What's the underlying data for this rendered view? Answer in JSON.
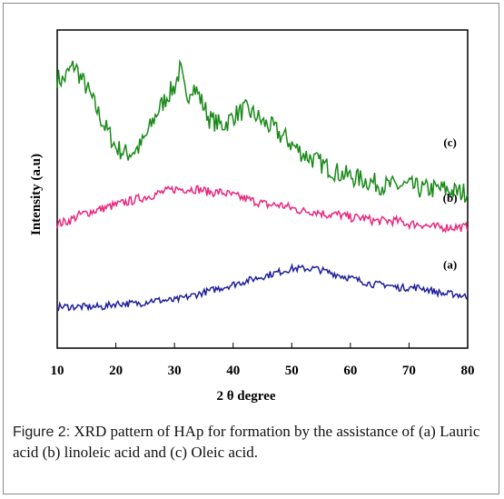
{
  "chart_data": {
    "type": "line",
    "xlabel": "2 θ  degree",
    "ylabel": "Intensity (a.u)",
    "xlim": [
      10,
      80
    ],
    "ylim": [
      0,
      100
    ],
    "x_ticks": [
      10,
      20,
      30,
      40,
      50,
      60,
      70,
      80
    ],
    "grid": false,
    "legend": "none",
    "series": [
      {
        "name": "(c)",
        "color": "#1a8a1a",
        "x": [
          10,
          11,
          12,
          13,
          14,
          15,
          16,
          17,
          18,
          19,
          20,
          21,
          22,
          23,
          24,
          25,
          26,
          27,
          28,
          29,
          30,
          31,
          32,
          33,
          34,
          35,
          36,
          37,
          38,
          39,
          40,
          41,
          42,
          43,
          44,
          45,
          46,
          47,
          48,
          49,
          50,
          52,
          54,
          56,
          58,
          60,
          62,
          64,
          66,
          68,
          70,
          72,
          74,
          76,
          78,
          80
        ],
        "y": [
          85,
          84,
          87,
          89,
          85,
          82,
          78,
          74,
          70,
          67,
          63,
          62,
          61,
          62,
          63,
          66,
          70,
          74,
          77,
          80,
          82,
          88,
          78,
          83,
          80,
          76,
          72,
          71,
          70,
          71,
          73,
          74,
          75,
          74,
          73,
          71,
          70,
          69,
          67,
          66,
          64,
          61,
          59,
          57,
          55,
          54,
          53,
          52,
          51,
          51,
          51,
          50,
          50,
          50,
          49,
          49
        ]
      },
      {
        "name": "(b)",
        "color": "#e8277f",
        "x": [
          10,
          12,
          14,
          16,
          18,
          20,
          22,
          24,
          26,
          28,
          30,
          32,
          34,
          36,
          38,
          40,
          42,
          44,
          46,
          48,
          50,
          52,
          54,
          56,
          58,
          60,
          62,
          64,
          66,
          68,
          70,
          72,
          74,
          76,
          78,
          80
        ],
        "y": [
          39,
          40,
          42,
          43,
          44,
          45,
          46,
          47,
          48,
          49,
          50,
          50,
          50,
          49,
          49,
          48,
          47,
          46,
          45,
          45,
          44,
          43,
          43,
          42,
          42,
          41,
          41,
          40,
          40,
          40,
          39,
          39,
          38,
          38,
          38,
          38
        ]
      },
      {
        "name": "(a)",
        "color": "#1e1e9e",
        "x": [
          10,
          12,
          14,
          16,
          18,
          20,
          22,
          24,
          26,
          28,
          30,
          32,
          34,
          36,
          38,
          40,
          42,
          44,
          46,
          48,
          50,
          52,
          54,
          56,
          58,
          60,
          62,
          64,
          66,
          68,
          70,
          72,
          74,
          76,
          78,
          80
        ],
        "y": [
          13,
          13,
          13,
          13,
          13,
          14,
          14,
          14,
          15,
          15,
          15,
          16,
          17,
          18,
          19,
          20,
          21,
          22,
          23,
          24,
          25,
          25,
          25,
          24,
          23,
          22,
          21,
          20,
          20,
          19,
          19,
          19,
          18,
          17,
          17,
          16
        ]
      }
    ]
  },
  "caption": {
    "figure_label": "Figure 2:",
    "text": " XRD pattern of HAp for formation by the assistance of (a) Lauric acid (b) linoleic acid and (c) Oleic acid."
  }
}
